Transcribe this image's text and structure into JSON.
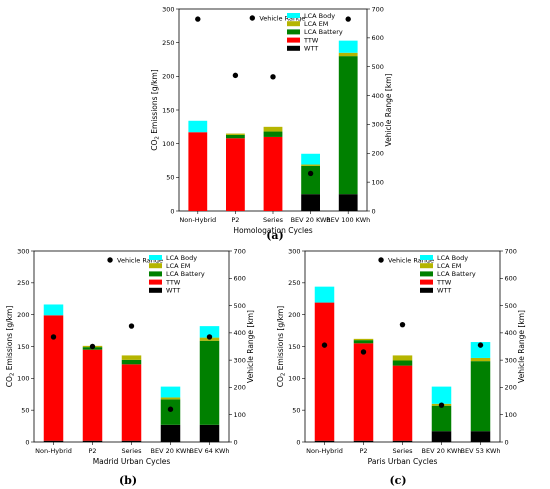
{
  "colors": {
    "WTT": "#000000",
    "TTW": "#ff0000",
    "LCA Battery": "#008000",
    "LCA EM": "#b5b500",
    "LCA Body": "#00ffff",
    "vehicle_range": "#000000"
  },
  "chart_data": [
    {
      "type": "bar",
      "panel_label": "(a)",
      "xlabel": "Homologation Cycles",
      "ylabel": "CO2 Emissions [g/km]",
      "ylabel2": "Vehicle Range [km]",
      "ylim": [
        0,
        300
      ],
      "y2lim": [
        0,
        700
      ],
      "yticks": [
        0,
        50,
        100,
        150,
        200,
        250,
        300
      ],
      "y2ticks": [
        0,
        100,
        200,
        300,
        400,
        500,
        600,
        700
      ],
      "legend": "top-right",
      "categories": [
        "Non-Hybrid",
        "P2",
        "Series",
        "BEV 20 KWh",
        "BEV 100 KWh"
      ],
      "series": [
        {
          "name": "WTT",
          "values": [
            0,
            0,
            0,
            25,
            25
          ]
        },
        {
          "name": "TTW",
          "values": [
            117,
            108,
            110,
            0,
            0
          ]
        },
        {
          "name": "LCA Battery",
          "values": [
            0,
            5,
            8,
            42,
            205
          ]
        },
        {
          "name": "LCA EM",
          "values": [
            0,
            2,
            7,
            2,
            5
          ]
        },
        {
          "name": "LCA Body",
          "values": [
            17,
            0,
            0,
            16,
            18
          ]
        }
      ],
      "range_series": {
        "name": "Vehicle Range",
        "values": [
          665,
          470,
          465,
          130,
          665
        ]
      }
    },
    {
      "type": "bar",
      "panel_label": "(b)",
      "xlabel": "Madrid Urban Cycles",
      "ylabel": "CO2 Emissions [g/km]",
      "ylabel2": "Vehicle Range [km]",
      "ylim": [
        0,
        300
      ],
      "y2lim": [
        0,
        700
      ],
      "yticks": [
        0,
        50,
        100,
        150,
        200,
        250,
        300
      ],
      "y2ticks": [
        0,
        100,
        200,
        300,
        400,
        500,
        600,
        700
      ],
      "legend": "top-right",
      "categories": [
        "Non-Hybrid",
        "P2",
        "Series",
        "BEV 20 KWh",
        "BEV 64 KWh"
      ],
      "series": [
        {
          "name": "WTT",
          "values": [
            2,
            2,
            2,
            27,
            27
          ]
        },
        {
          "name": "TTW",
          "values": [
            197,
            143,
            120,
            0,
            0
          ]
        },
        {
          "name": "LCA Battery",
          "values": [
            0,
            4,
            7,
            40,
            132
          ]
        },
        {
          "name": "LCA EM",
          "values": [
            0,
            2,
            7,
            3,
            5
          ]
        },
        {
          "name": "LCA Body",
          "values": [
            17,
            0,
            0,
            17,
            18
          ]
        }
      ],
      "range_series": {
        "name": "Vehicle Range",
        "values": [
          385,
          350,
          425,
          120,
          385
        ]
      }
    },
    {
      "type": "bar",
      "panel_label": "(c)",
      "xlabel": "Paris Urban Cycles",
      "ylabel": "CO2 Emissions [g/km]",
      "ylabel2": "Vehicle Range [km]",
      "ylim": [
        0,
        300
      ],
      "y2lim": [
        0,
        700
      ],
      "yticks": [
        0,
        50,
        100,
        150,
        200,
        250,
        300
      ],
      "y2ticks": [
        0,
        100,
        200,
        300,
        400,
        500,
        600,
        700
      ],
      "legend": "top-right",
      "categories": [
        "Non-Hybrid",
        "P2",
        "Series",
        "BEV 20 KWh",
        "BEV 53 KWh"
      ],
      "series": [
        {
          "name": "WTT",
          "values": [
            2,
            2,
            2,
            17,
            17
          ]
        },
        {
          "name": "TTW",
          "values": [
            217,
            153,
            118,
            0,
            0
          ]
        },
        {
          "name": "LCA Battery",
          "values": [
            0,
            5,
            8,
            40,
            110
          ]
        },
        {
          "name": "LCA EM",
          "values": [
            0,
            2,
            8,
            3,
            5
          ]
        },
        {
          "name": "LCA Body",
          "values": [
            25,
            0,
            0,
            27,
            25
          ]
        }
      ],
      "range_series": {
        "name": "Vehicle Range",
        "values": [
          355,
          330,
          430,
          135,
          355
        ]
      }
    }
  ]
}
